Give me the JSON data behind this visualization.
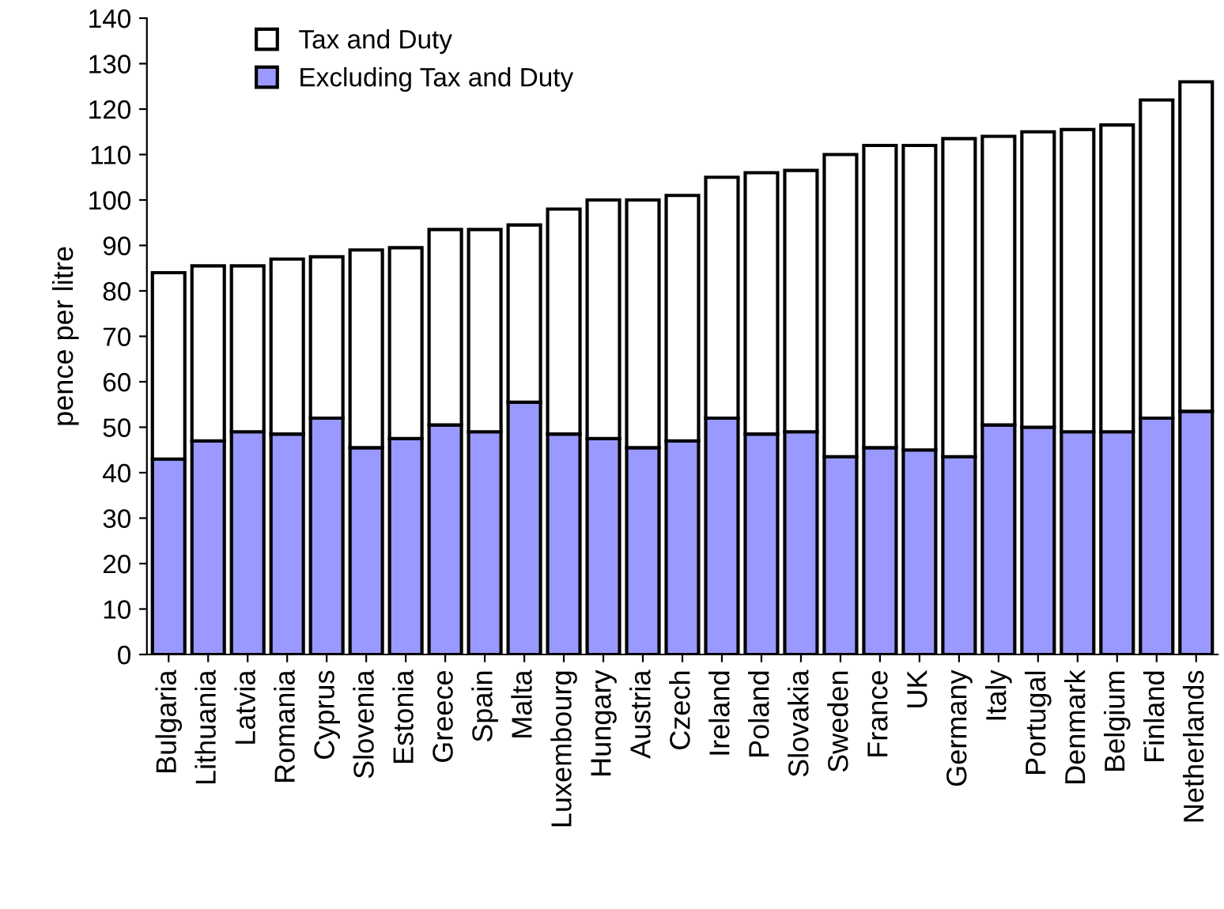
{
  "chart_data": {
    "type": "bar",
    "stacked": true,
    "ylabel": "pence per litre",
    "categories": [
      "Bulgaria",
      "Lithuania",
      "Latvia",
      "Romania",
      "Cyprus",
      "Slovenia",
      "Estonia",
      "Greece",
      "Spain",
      "Malta",
      "Luxembourg",
      "Hungary",
      "Austria",
      "Czech",
      "Ireland",
      "Poland",
      "Slovakia",
      "Sweden",
      "France",
      "UK",
      "Germany",
      "Italy",
      "Portugal",
      "Denmark",
      "Belgium",
      "Finland",
      "Netherlands"
    ],
    "series": [
      {
        "name": "Excluding Tax and Duty",
        "color": "#9999ff",
        "values": [
          43,
          47,
          49,
          48.5,
          52,
          45.5,
          47.5,
          50.5,
          49,
          55.5,
          48.5,
          47.5,
          45.5,
          47,
          52,
          48.5,
          49,
          43.5,
          45.5,
          45,
          43.5,
          50.5,
          50,
          49,
          49,
          52,
          53.5
        ]
      },
      {
        "name": "Tax and Duty",
        "color": "#ffffff",
        "values": [
          41,
          38.5,
          36.5,
          38.5,
          35.5,
          43.5,
          42,
          43,
          44.5,
          39,
          49.5,
          52.5,
          54.5,
          54,
          53,
          57.5,
          57.5,
          66.5,
          66.5,
          67,
          70,
          63.5,
          65,
          66.5,
          67.5,
          70,
          72.5
        ]
      }
    ],
    "ylim": [
      0,
      140
    ],
    "yticks": [
      0,
      10,
      20,
      30,
      40,
      50,
      60,
      70,
      80,
      90,
      100,
      110,
      120,
      130,
      140
    ],
    "grid": false,
    "legend": "top left"
  }
}
